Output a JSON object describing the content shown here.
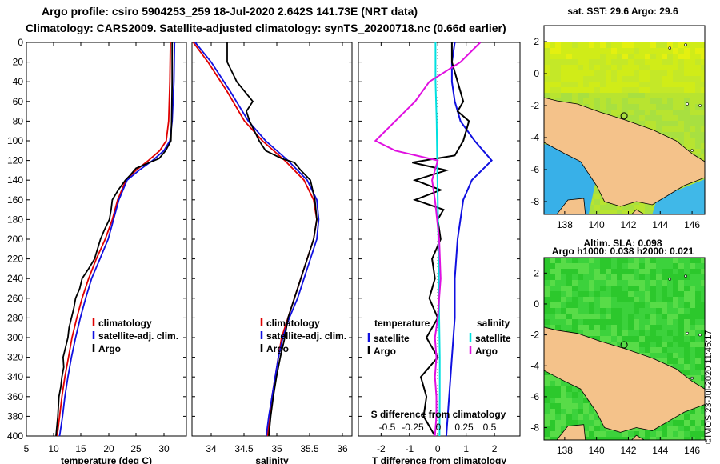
{
  "header": {
    "title1": "Argo profile: csiro 5904253_259 18-Jul-2020 2.642S 141.73E (NRT data)",
    "title2": "Climatology: CARS2009. Satellite-adjusted climatology: synTS_20200718.nc (0.66d earlier)",
    "stamp": "©IMOS 23-Jul-2020 11:45:17"
  },
  "colors": {
    "climatology": "#e00000",
    "satellite": "#1010e0",
    "argo": "#000000",
    "sat_s": "#00e0e0",
    "argo_s": "#e010e0",
    "land": "#f4c28a",
    "ocean_warm": "#c8ec20",
    "ocean_cool": "#30b4e8",
    "sla_green": "#30d030"
  },
  "chart_data": [
    {
      "type": "line",
      "name": "temperature",
      "xlabel": "temperature (deg C)",
      "ylabel": "depth",
      "xlim": [
        5,
        32
      ],
      "ylim": [
        400,
        0
      ],
      "xticks": [
        "5",
        "10",
        "15",
        "20",
        "25",
        "30"
      ],
      "yticks": [
        "0",
        "20",
        "40",
        "60",
        "80",
        "100",
        "120",
        "140",
        "160",
        "180",
        "200",
        "220",
        "240",
        "260",
        "280",
        "300",
        "320",
        "340",
        "360",
        "380",
        "400"
      ],
      "legend": [
        "climatology",
        "satellite-adj. clim.",
        "Argo"
      ],
      "series": [
        {
          "name": "climatology",
          "color": "#e00000",
          "points": [
            [
              29.3,
              0
            ],
            [
              29.2,
              40
            ],
            [
              29.0,
              80
            ],
            [
              28.6,
              100
            ],
            [
              27.5,
              110
            ],
            [
              25.6,
              120
            ],
            [
              23.5,
              130
            ],
            [
              21.8,
              140
            ],
            [
              20.4,
              160
            ],
            [
              19.5,
              180
            ],
            [
              18.3,
              200
            ],
            [
              16.8,
              220
            ],
            [
              15.5,
              240
            ],
            [
              14.4,
              260
            ],
            [
              13.5,
              280
            ],
            [
              12.7,
              300
            ],
            [
              12.1,
              320
            ],
            [
              11.5,
              340
            ],
            [
              11.0,
              360
            ],
            [
              10.6,
              380
            ],
            [
              10.2,
              400
            ]
          ]
        },
        {
          "name": "satellite-adj. clim.",
          "color": "#1010e0",
          "points": [
            [
              30.0,
              0
            ],
            [
              29.9,
              40
            ],
            [
              29.6,
              80
            ],
            [
              29.2,
              100
            ],
            [
              28.2,
              110
            ],
            [
              26.3,
              120
            ],
            [
              24.0,
              130
            ],
            [
              22.0,
              140
            ],
            [
              20.6,
              160
            ],
            [
              19.7,
              180
            ],
            [
              18.8,
              200
            ],
            [
              17.4,
              220
            ],
            [
              16.0,
              240
            ],
            [
              15.0,
              260
            ],
            [
              14.1,
              280
            ],
            [
              13.3,
              300
            ],
            [
              12.6,
              320
            ],
            [
              12.0,
              340
            ],
            [
              11.5,
              360
            ],
            [
              11.1,
              380
            ],
            [
              10.6,
              400
            ]
          ]
        },
        {
          "name": "Argo",
          "color": "#000000",
          "points": [
            [
              29.6,
              0
            ],
            [
              29.6,
              40
            ],
            [
              29.5,
              80
            ],
            [
              29.4,
              100
            ],
            [
              28.5,
              110
            ],
            [
              27.4,
              118
            ],
            [
              25.8,
              122
            ],
            [
              23.5,
              128
            ],
            [
              22.5,
              135
            ],
            [
              21.7,
              140
            ],
            [
              20.5,
              150
            ],
            [
              19.5,
              160
            ],
            [
              19.3,
              170
            ],
            [
              19.0,
              180
            ],
            [
              18.2,
              190
            ],
            [
              17.5,
              200
            ],
            [
              17.0,
              210
            ],
            [
              16.5,
              220
            ],
            [
              15.5,
              230
            ],
            [
              14.4,
              240
            ],
            [
              14.0,
              250
            ],
            [
              13.3,
              260
            ],
            [
              13.0,
              270
            ],
            [
              12.6,
              280
            ],
            [
              12.2,
              290
            ],
            [
              12.0,
              300
            ],
            [
              11.6,
              310
            ],
            [
              11.2,
              320
            ],
            [
              11.3,
              330
            ],
            [
              11.0,
              340
            ],
            [
              10.8,
              350
            ],
            [
              10.5,
              360
            ],
            [
              10.3,
              380
            ],
            [
              10.0,
              400
            ]
          ]
        }
      ]
    },
    {
      "type": "line",
      "name": "salinity",
      "xlabel": "salinity",
      "xlim": [
        33.6,
        36.1
      ],
      "ylim": [
        400,
        0
      ],
      "xticks": [
        "34",
        "34.5",
        "35",
        "35.5",
        "36"
      ],
      "legend": [
        "climatology",
        "satellite-adj. clim.",
        "Argo"
      ],
      "series": [
        {
          "name": "climatology",
          "color": "#e00000",
          "points": [
            [
              33.62,
              0
            ],
            [
              33.85,
              20
            ],
            [
              34.15,
              50
            ],
            [
              34.42,
              80
            ],
            [
              34.7,
              100
            ],
            [
              35.05,
              120
            ],
            [
              35.35,
              140
            ],
            [
              35.5,
              160
            ],
            [
              35.55,
              180
            ],
            [
              35.5,
              200
            ],
            [
              35.4,
              220
            ],
            [
              35.3,
              240
            ],
            [
              35.2,
              260
            ],
            [
              35.1,
              280
            ],
            [
              35.0,
              300
            ],
            [
              34.95,
              320
            ],
            [
              34.9,
              340
            ],
            [
              34.85,
              360
            ],
            [
              34.82,
              380
            ],
            [
              34.78,
              400
            ]
          ]
        },
        {
          "name": "satellite-adj. clim.",
          "color": "#1010e0",
          "points": [
            [
              33.65,
              0
            ],
            [
              33.9,
              20
            ],
            [
              34.2,
              50
            ],
            [
              34.48,
              80
            ],
            [
              34.75,
              100
            ],
            [
              35.1,
              120
            ],
            [
              35.4,
              140
            ],
            [
              35.55,
              160
            ],
            [
              35.58,
              180
            ],
            [
              35.55,
              200
            ],
            [
              35.45,
              220
            ],
            [
              35.35,
              240
            ],
            [
              35.25,
              260
            ],
            [
              35.12,
              280
            ],
            [
              35.02,
              300
            ],
            [
              34.95,
              320
            ],
            [
              34.9,
              340
            ],
            [
              34.85,
              360
            ],
            [
              34.8,
              380
            ],
            [
              34.76,
              400
            ]
          ]
        },
        {
          "name": "Argo",
          "color": "#000000",
          "points": [
            [
              34.15,
              0
            ],
            [
              34.15,
              10
            ],
            [
              34.15,
              20
            ],
            [
              34.3,
              40
            ],
            [
              34.55,
              60
            ],
            [
              34.45,
              70
            ],
            [
              34.5,
              80
            ],
            [
              34.65,
              100
            ],
            [
              34.75,
              110
            ],
            [
              35.0,
              118
            ],
            [
              35.2,
              122
            ],
            [
              35.3,
              130
            ],
            [
              35.45,
              140
            ],
            [
              35.52,
              160
            ],
            [
              35.55,
              180
            ],
            [
              35.5,
              200
            ],
            [
              35.4,
              220
            ],
            [
              35.3,
              240
            ],
            [
              35.2,
              260
            ],
            [
              35.1,
              280
            ],
            [
              35.05,
              300
            ],
            [
              34.98,
              320
            ],
            [
              34.92,
              340
            ],
            [
              34.87,
              360
            ],
            [
              34.83,
              380
            ],
            [
              34.8,
              400
            ]
          ]
        }
      ]
    },
    {
      "type": "line",
      "name": "difference",
      "xlabel": "T difference from climatology",
      "xlabel_top": "S difference from climatology",
      "xlim": [
        -2.8,
        2.9
      ],
      "xticks": [
        "-2",
        "-1",
        "0",
        "1",
        "2"
      ],
      "xticks_s": [
        "-0.5",
        "-0.25",
        "0",
        "0.25",
        "0.5"
      ],
      "legend": {
        "temperature_head": "temperature",
        "salinity_head": "salinity",
        "items": [
          "satellite",
          "Argo",
          "satellite",
          "Argo"
        ]
      },
      "series": [
        {
          "name": "T satellite",
          "color": "#1010e0",
          "points": [
            [
              0.6,
              0
            ],
            [
              0.5,
              20
            ],
            [
              0.5,
              40
            ],
            [
              0.6,
              60
            ],
            [
              0.8,
              80
            ],
            [
              1.3,
              100
            ],
            [
              1.9,
              120
            ],
            [
              1.2,
              140
            ],
            [
              0.9,
              160
            ],
            [
              0.7,
              200
            ],
            [
              0.6,
              240
            ],
            [
              0.6,
              280
            ],
            [
              0.5,
              320
            ],
            [
              0.4,
              360
            ],
            [
              0.3,
              400
            ]
          ]
        },
        {
          "name": "T Argo",
          "color": "#000000",
          "points": [
            [
              0.5,
              0
            ],
            [
              0.5,
              20
            ],
            [
              0.7,
              40
            ],
            [
              0.9,
              60
            ],
            [
              0.7,
              70
            ],
            [
              1.1,
              80
            ],
            [
              1.0,
              90
            ],
            [
              0.9,
              100
            ],
            [
              0.6,
              115
            ],
            [
              -0.9,
              122
            ],
            [
              0.3,
              130
            ],
            [
              -0.8,
              140
            ],
            [
              0.1,
              150
            ],
            [
              -0.8,
              160
            ],
            [
              0.2,
              170
            ],
            [
              0.0,
              180
            ],
            [
              0.1,
              200
            ],
            [
              -0.2,
              220
            ],
            [
              -0.1,
              240
            ],
            [
              -0.3,
              260
            ],
            [
              0.0,
              280
            ],
            [
              -0.4,
              300
            ],
            [
              0.0,
              320
            ],
            [
              -0.6,
              340
            ],
            [
              -0.4,
              360
            ],
            [
              -0.5,
              380
            ],
            [
              -0.1,
              400
            ]
          ]
        },
        {
          "name": "S satellite",
          "color": "#00e0e0",
          "points": [
            [
              -0.08,
              0
            ],
            [
              -0.08,
              40
            ],
            [
              -0.04,
              80
            ],
            [
              -0.02,
              120
            ],
            [
              0.0,
              160
            ],
            [
              0.02,
              200
            ],
            [
              0.04,
              240
            ],
            [
              0.05,
              280
            ],
            [
              0.07,
              320
            ],
            [
              0.07,
              360
            ],
            [
              0.06,
              400
            ]
          ]
        },
        {
          "name": "S Argo",
          "color": "#e010e0",
          "points": [
            [
              1.5,
              0
            ],
            [
              0.8,
              20
            ],
            [
              -0.3,
              40
            ],
            [
              -0.8,
              60
            ],
            [
              -1.5,
              80
            ],
            [
              -2.2,
              100
            ],
            [
              -1.5,
              110
            ],
            [
              0.0,
              120
            ],
            [
              -0.2,
              140
            ],
            [
              -0.1,
              160
            ],
            [
              0.05,
              200
            ],
            [
              0.1,
              240
            ],
            [
              0.0,
              280
            ],
            [
              -0.1,
              300
            ],
            [
              -0.05,
              320
            ],
            [
              -0.1,
              340
            ],
            [
              -0.05,
              360
            ],
            [
              -0.05,
              380
            ],
            [
              -0.1,
              400
            ]
          ]
        }
      ]
    },
    {
      "type": "heatmap",
      "name": "sst_map",
      "title": "sat. SST: 29.6 Argo: 29.6",
      "xticks": [
        "138",
        "140",
        "142",
        "144",
        "146"
      ],
      "yticks": [
        "2",
        "0",
        "-2",
        "-4",
        "-6",
        "-8"
      ],
      "xlim": [
        136.7,
        146.8
      ],
      "ylim": [
        -8.8,
        3.0
      ],
      "argo_position": [
        141.73,
        -2.642
      ]
    },
    {
      "type": "heatmap",
      "name": "sla_map",
      "title": "Altim. SLA: 0.098",
      "title2": "Argo h1000: 0.038 h2000: 0.021",
      "xticks": [
        "138",
        "140",
        "142",
        "144",
        "146"
      ],
      "yticks": [
        "2",
        "0",
        "-2",
        "-4",
        "-6",
        "-8"
      ],
      "xlim": [
        136.7,
        146.8
      ],
      "ylim": [
        -8.8,
        3.0
      ],
      "argo_position": [
        141.73,
        -2.642
      ]
    }
  ]
}
